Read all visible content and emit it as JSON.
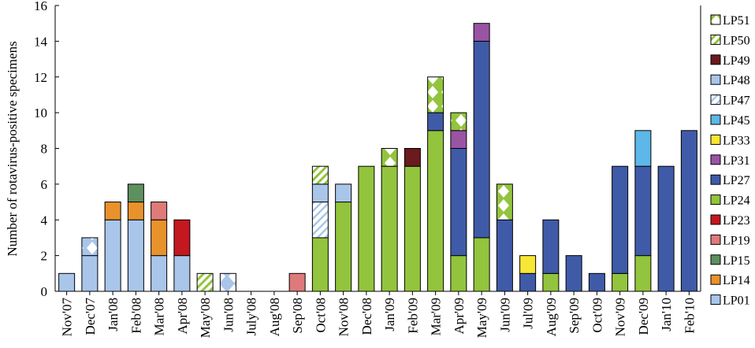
{
  "chart_data": {
    "type": "bar",
    "stacked": true,
    "ylabel": "Number of rotavirus-positive specimens",
    "xlabel": "",
    "ylim": [
      0,
      16
    ],
    "yticks": [
      0,
      2,
      4,
      6,
      8,
      10,
      12,
      14,
      16
    ],
    "grid": false,
    "legend_position": "right",
    "categories": [
      "Nov'07",
      "Dec'07",
      "Jan'08",
      "Feb'08",
      "Mar'08",
      "Apr'08",
      "May'08",
      "Jun'08",
      "July'08",
      "Aug'08",
      "Sep'08",
      "Oct'08",
      "Nov'08",
      "Dec'08",
      "Jan'09",
      "Feb'09",
      "Mar'09",
      "Apr'09",
      "May'09",
      "Jun'09",
      "Jul'09",
      "Aug'09",
      "Sep'09",
      "Oct'09",
      "Nov'09",
      "Dec'09",
      "Jan'10",
      "Feb'10"
    ],
    "series": [
      {
        "name": "LP01",
        "color": "#a9c6ea",
        "pattern": "solid",
        "values": [
          1,
          2,
          4,
          4,
          2,
          2,
          0,
          0,
          0,
          0,
          0,
          0,
          0,
          0,
          0,
          0,
          0,
          0,
          0,
          0,
          0,
          0,
          0,
          0,
          0,
          0,
          0,
          0
        ]
      },
      {
        "name": "LP14",
        "color": "#e8922b",
        "pattern": "solid",
        "values": [
          0,
          0,
          1,
          1,
          2,
          0,
          0,
          0,
          0,
          0,
          0,
          0,
          0,
          0,
          0,
          0,
          0,
          0,
          0,
          0,
          0,
          0,
          0,
          0,
          0,
          0,
          0,
          0
        ]
      },
      {
        "name": "LP15",
        "color": "#5e8f5f",
        "pattern": "solid",
        "values": [
          0,
          0,
          0,
          1,
          0,
          0,
          0,
          0,
          0,
          0,
          0,
          0,
          0,
          0,
          0,
          0,
          0,
          0,
          0,
          0,
          0,
          0,
          0,
          0,
          0,
          0,
          0,
          0
        ]
      },
      {
        "name": "LP19",
        "color": "#df7a7a",
        "pattern": "solid",
        "values": [
          0,
          0,
          0,
          0,
          1,
          0,
          0,
          0,
          0,
          0,
          1,
          0,
          0,
          0,
          0,
          0,
          0,
          0,
          0,
          0,
          0,
          0,
          0,
          0,
          0,
          0,
          0,
          0
        ]
      },
      {
        "name": "LP23",
        "color": "#c4171f",
        "pattern": "solid",
        "values": [
          0,
          0,
          0,
          0,
          0,
          2,
          0,
          0,
          0,
          0,
          0,
          0,
          0,
          0,
          0,
          0,
          0,
          0,
          0,
          0,
          0,
          0,
          0,
          0,
          0,
          0,
          0,
          0
        ]
      },
      {
        "name": "LP24",
        "color": "#93c43d",
        "pattern": "solid",
        "values": [
          0,
          0,
          0,
          0,
          0,
          0,
          0,
          0,
          0,
          0,
          0,
          3,
          5,
          7,
          7,
          7,
          9,
          2,
          3,
          0,
          0,
          1,
          0,
          0,
          1,
          2,
          0,
          0
        ]
      },
      {
        "name": "LP27",
        "color": "#3f5ba8",
        "pattern": "solid",
        "values": [
          0,
          0,
          0,
          0,
          0,
          0,
          0,
          0,
          0,
          0,
          0,
          0,
          0,
          0,
          0,
          0,
          1,
          6,
          11,
          4,
          1,
          3,
          2,
          1,
          6,
          5,
          7,
          9
        ]
      },
      {
        "name": "LP31",
        "color": "#9a54a4",
        "pattern": "solid",
        "values": [
          0,
          0,
          0,
          0,
          0,
          0,
          0,
          0,
          0,
          0,
          0,
          0,
          0,
          0,
          0,
          0,
          0,
          1,
          1,
          0,
          0,
          0,
          0,
          0,
          0,
          0,
          0,
          0
        ]
      },
      {
        "name": "LP33",
        "color": "#f7e635",
        "pattern": "solid",
        "values": [
          0,
          0,
          0,
          0,
          0,
          0,
          0,
          0,
          0,
          0,
          0,
          0,
          0,
          0,
          0,
          0,
          0,
          0,
          0,
          0,
          1,
          0,
          0,
          0,
          0,
          0,
          0,
          0
        ]
      },
      {
        "name": "LP45",
        "color": "#5db7e8",
        "pattern": "solid",
        "values": [
          0,
          0,
          0,
          0,
          0,
          0,
          0,
          0,
          0,
          0,
          0,
          0,
          0,
          0,
          0,
          0,
          0,
          0,
          0,
          0,
          0,
          0,
          0,
          0,
          0,
          2,
          0,
          0
        ]
      },
      {
        "name": "LP47",
        "color": "#a9c6ea",
        "pattern": "hatch",
        "values": [
          0,
          0,
          0,
          0,
          0,
          0,
          0,
          0,
          0,
          0,
          0,
          2,
          0,
          0,
          0,
          0,
          0,
          0,
          0,
          0,
          0,
          0,
          0,
          0,
          0,
          0,
          0,
          0
        ]
      },
      {
        "name": "LP48",
        "color": "#a9c6ea",
        "pattern": "solid",
        "values": [
          0,
          0,
          0,
          0,
          0,
          0,
          0,
          0,
          0,
          0,
          0,
          1,
          1,
          0,
          0,
          0,
          0,
          0,
          0,
          0,
          0,
          0,
          0,
          0,
          0,
          0,
          0,
          0
        ]
      },
      {
        "name": "LP49",
        "color": "#6b1a1e",
        "pattern": "solid",
        "values": [
          0,
          0,
          0,
          0,
          0,
          0,
          0,
          0,
          0,
          0,
          0,
          0,
          0,
          0,
          0,
          1,
          0,
          0,
          0,
          0,
          0,
          0,
          0,
          0,
          0,
          0,
          0,
          0
        ]
      },
      {
        "name": "LP50",
        "color": "#93c43d",
        "pattern": "hatch",
        "values": [
          0,
          0,
          0,
          0,
          0,
          0,
          1,
          0,
          0,
          0,
          0,
          1,
          0,
          0,
          0,
          0,
          0,
          0,
          0,
          0,
          0,
          0,
          0,
          0,
          0,
          0,
          0,
          0
        ]
      },
      {
        "name": "LP51",
        "color": "#93c43d",
        "pattern": "diamond",
        "values": [
          0,
          0,
          0,
          0,
          0,
          0,
          0,
          0,
          0,
          0,
          0,
          0,
          0,
          0,
          1,
          0,
          2,
          1,
          0,
          2,
          0,
          0,
          0,
          0,
          0,
          0,
          0,
          0
        ]
      }
    ],
    "extra_segments": [
      {
        "category": "Dec'07",
        "label_series": "LP01",
        "pattern": "diamond",
        "color": "#a9c6ea",
        "value": 1
      },
      {
        "category": "Jun'08",
        "label_series": "LP01",
        "pattern": "diamond",
        "color": "#a9c6ea",
        "value": 1
      }
    ]
  }
}
